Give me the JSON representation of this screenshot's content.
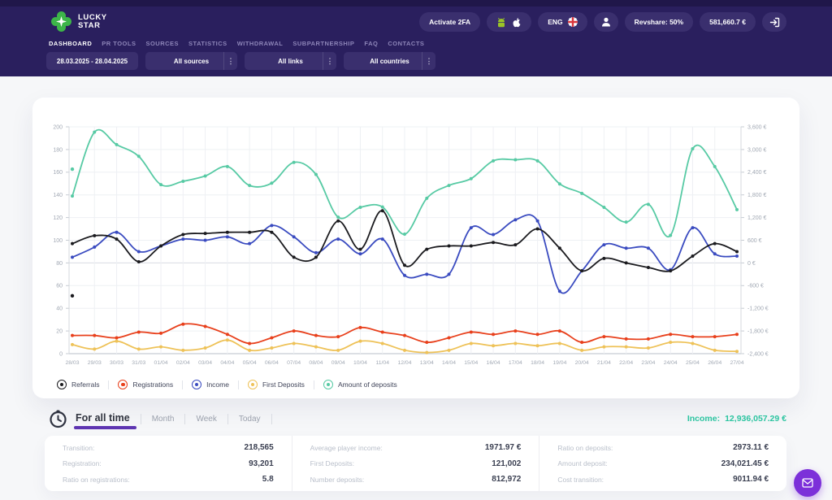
{
  "colors": {
    "header_bg": "#2a1f5e",
    "pill_bg": "#3a2f6e",
    "accent_purple": "#5e35b1",
    "accent_teal": "#2cc4a0",
    "chat_fab": "#7c30d9",
    "logo_green": "#3db549"
  },
  "header": {
    "logo_line1": "LUCKY",
    "logo_line2": "STAR",
    "activate_2fa": "Activate 2FA",
    "lang": "ENG",
    "revshare": "Revshare: 50%",
    "balance": "581,660.7 €",
    "menu_dots_glyph": "⋮",
    "nav": [
      {
        "label": "DASHBOARD",
        "active": true
      },
      {
        "label": "PR TOOLS",
        "active": false
      },
      {
        "label": "SOURCES",
        "active": false
      },
      {
        "label": "STATISTICS",
        "active": false
      },
      {
        "label": "WITHDRAWAL",
        "active": false
      },
      {
        "label": "SUBPARTNERSHIP",
        "active": false
      },
      {
        "label": "FAQ",
        "active": false
      },
      {
        "label": "CONTACTS",
        "active": false
      }
    ],
    "filters": [
      {
        "label": "28.03.2025 - 28.04.2025",
        "menu": false
      },
      {
        "label": "All sources",
        "menu": true
      },
      {
        "label": "All links",
        "menu": true
      },
      {
        "label": "All countries",
        "menu": true
      }
    ]
  },
  "chart_data": {
    "type": "line",
    "x_labels": [
      "28/03",
      "29/03",
      "30/03",
      "31/03",
      "01/04",
      "02/04",
      "03/04",
      "04/04",
      "05/04",
      "06/04",
      "07/04",
      "08/04",
      "09/04",
      "10/04",
      "11/04",
      "12/04",
      "13/04",
      "14/04",
      "15/04",
      "16/04",
      "17/04",
      "18/04",
      "19/04",
      "20/04",
      "21/04",
      "22/04",
      "23/04",
      "24/04",
      "25/04",
      "26/04",
      "27/04"
    ],
    "left_axis": {
      "min": 0,
      "max": 200,
      "step": 20,
      "tick_labels": [
        "0",
        "20",
        "40",
        "60",
        "80",
        "100",
        "120",
        "140",
        "160",
        "180",
        "200"
      ]
    },
    "right_axis": {
      "min": -2400,
      "max": 3600,
      "step": 600,
      "unit": "EUR",
      "tick_labels": [
        "-2,400 €",
        "-1,800 €",
        "-1,200 €",
        "-600 €",
        "0 €",
        "600 €",
        "1,200 €",
        "1,800 €",
        "2,400 €",
        "3,000 €",
        "3,600 €"
      ]
    },
    "grid": true,
    "legend_position": "bottom",
    "series": [
      {
        "name": "Referrals",
        "color": "#1b1b1f",
        "axis": "left",
        "unit": "count",
        "values": [
          97,
          104,
          101,
          81,
          95,
          105,
          106,
          107,
          107,
          107,
          85,
          85,
          117,
          92,
          126,
          78,
          92,
          95,
          95,
          98,
          96,
          110,
          93,
          73,
          84,
          80,
          76,
          73,
          86,
          97,
          90
        ]
      },
      {
        "name": "Registrations",
        "color": "#e8401c",
        "axis": "left",
        "unit": "count",
        "values": [
          16,
          16,
          14,
          19,
          18,
          26,
          24,
          17,
          9,
          14,
          20,
          16,
          15,
          23,
          19,
          16,
          10,
          14,
          19,
          17,
          20,
          17,
          20,
          10,
          15,
          13,
          13,
          17,
          15,
          15,
          17
        ]
      },
      {
        "name": "Income",
        "color": "#3a4bc0",
        "axis": "right",
        "unit": "EUR",
        "values": [
          150,
          420,
          810,
          300,
          450,
          630,
          600,
          690,
          510,
          990,
          690,
          270,
          630,
          240,
          630,
          -330,
          -300,
          -300,
          930,
          750,
          1140,
          1110,
          -750,
          -210,
          480,
          390,
          390,
          -180,
          930,
          240,
          180
        ]
      },
      {
        "name": "First Deposits",
        "color": "#eec258",
        "axis": "left",
        "unit": "count",
        "values": [
          8,
          4,
          11,
          4,
          6,
          3,
          5,
          12,
          3,
          5,
          9,
          6,
          3,
          11,
          9,
          3,
          1,
          3,
          9,
          7,
          9,
          7,
          9,
          3,
          6,
          6,
          5,
          10,
          9,
          3,
          2
        ]
      },
      {
        "name": "Amount of deposits",
        "color": "#57caa4",
        "axis": "right",
        "unit": "EUR",
        "values": [
          1770,
          3460,
          3130,
          2820,
          2070,
          2160,
          2300,
          2550,
          2050,
          2110,
          2660,
          2340,
          1210,
          1470,
          1480,
          760,
          1710,
          2050,
          2230,
          2700,
          2730,
          2700,
          2090,
          1840,
          1470,
          1080,
          1550,
          730,
          3020,
          2550,
          1410
        ]
      }
    ],
    "orphan_points": [
      {
        "series": "Amount of deposits",
        "x_label": "28/03",
        "value": 2480
      },
      {
        "series": "Referrals",
        "x_label": "28/03",
        "value": 51
      }
    ]
  },
  "stats": {
    "tabs": [
      {
        "label": "For all time",
        "active": true
      },
      {
        "label": "Month",
        "active": false
      },
      {
        "label": "Week",
        "active": false
      },
      {
        "label": "Today",
        "active": false
      }
    ],
    "income_label": "Income:",
    "income_value": "12,936,057.29 €",
    "columns": [
      [
        {
          "label": "Transition:",
          "value": "218,565"
        },
        {
          "label": "Registration:",
          "value": "93,201"
        },
        {
          "label": "Ratio on registrations:",
          "value": "5.8"
        }
      ],
      [
        {
          "label": "Average player income:",
          "value": "1971.97 €"
        },
        {
          "label": "First Deposits:",
          "value": "121,002"
        },
        {
          "label": "Number deposits:",
          "value": "812,972"
        }
      ],
      [
        {
          "label": "Ratio on deposits:",
          "value": "2973.11 €"
        },
        {
          "label": "Amount deposit:",
          "value": "234,021.45 €"
        },
        {
          "label": "Cost transition:",
          "value": "9011.94 €"
        }
      ]
    ]
  }
}
